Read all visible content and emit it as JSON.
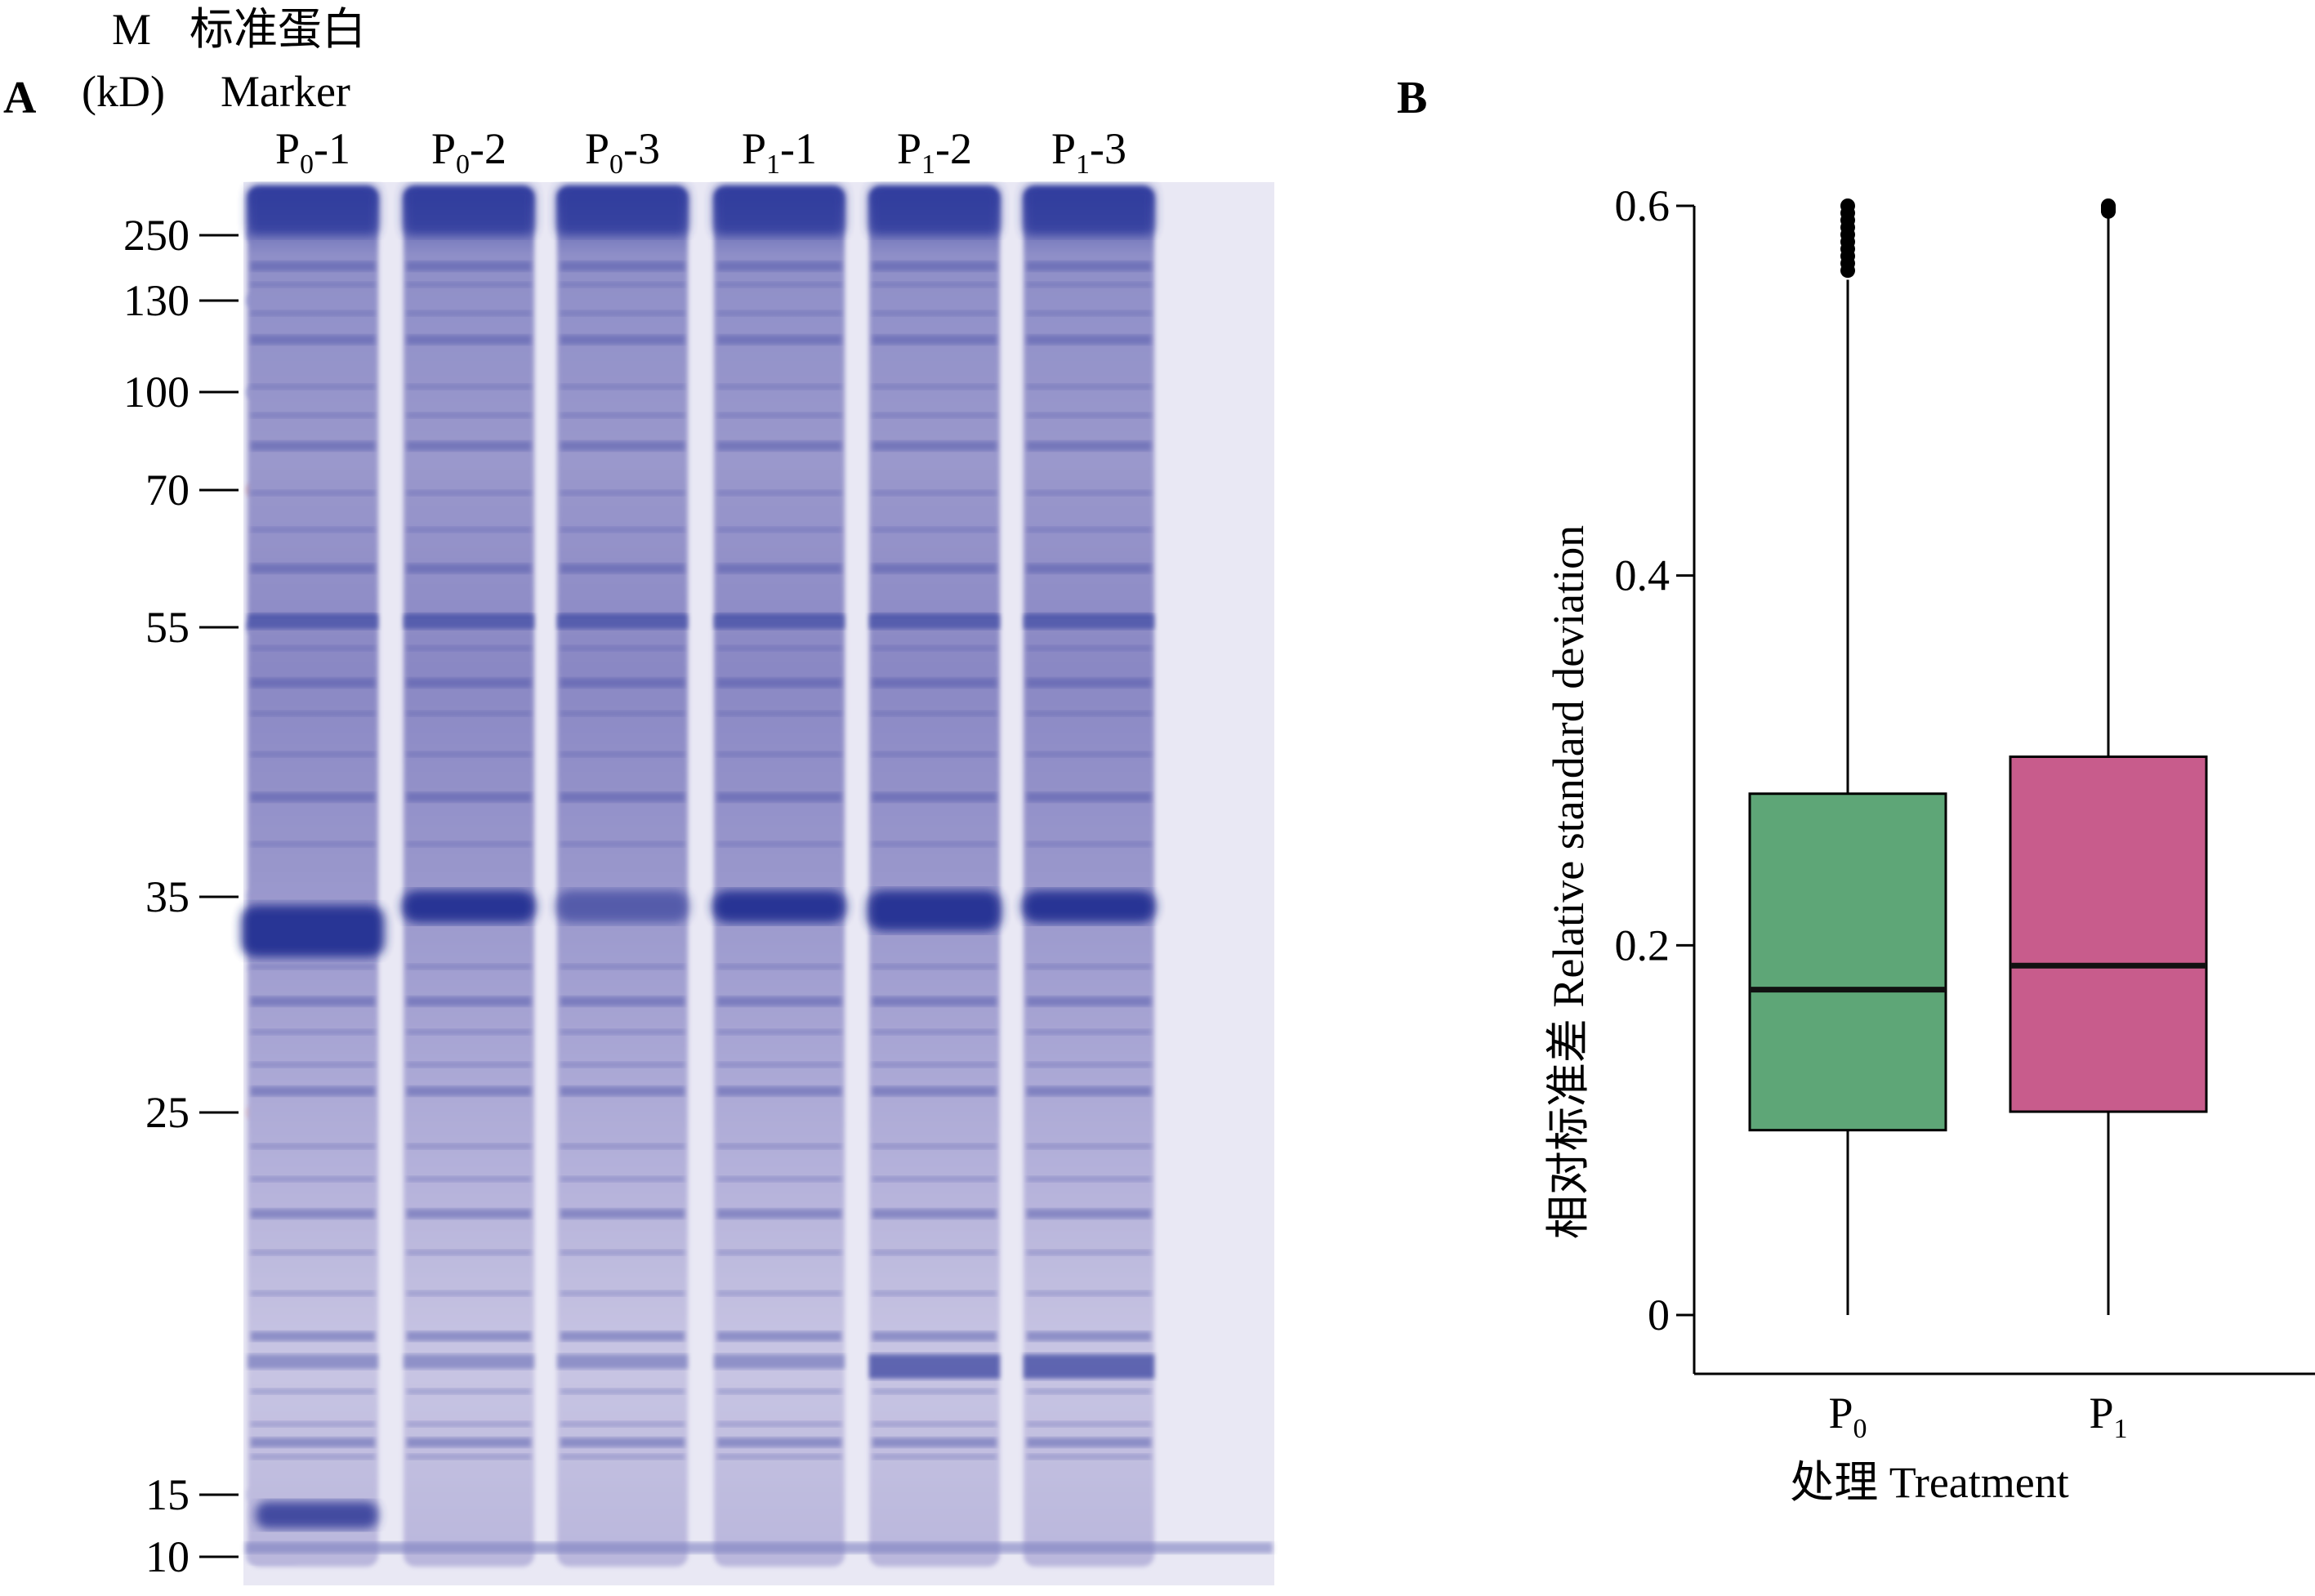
{
  "panel_a": {
    "label": "A",
    "header_m": "M",
    "header_kd": "(kD)",
    "header_std_protein": "标准蛋白",
    "header_marker": "Marker",
    "lanes": [
      {
        "main": "P",
        "sub": "0",
        "suffix": "-1"
      },
      {
        "main": "P",
        "sub": "0",
        "suffix": "-2"
      },
      {
        "main": "P",
        "sub": "0",
        "suffix": "-3"
      },
      {
        "main": "P",
        "sub": "1",
        "suffix": "-1"
      },
      {
        "main": "P",
        "sub": "1",
        "suffix": "-2"
      },
      {
        "main": "P",
        "sub": "1",
        "suffix": "-3"
      }
    ],
    "marker_sizes": [
      "250",
      "130",
      "100",
      "70",
      "55",
      "35",
      "25",
      "15",
      "10"
    ],
    "colors": {
      "gel_background": "#e9e8f4",
      "band_dark": "#2a3596",
      "band_mid": "#6c6fb8",
      "band_light": "#a9a6d3"
    }
  },
  "panel_b": {
    "label": "B",
    "chart_data": {
      "type": "box",
      "categories": [
        "P0",
        "P1"
      ],
      "category_labels": [
        {
          "main": "P",
          "sub": "0"
        },
        {
          "main": "P",
          "sub": "1"
        }
      ],
      "ylabel": "相对标准差 Relative standard deviation",
      "xlabel": "处理 Treatment",
      "ylim": [
        -0.03,
        0.6
      ],
      "yticks": [
        0,
        0.2,
        0.4,
        0.6
      ],
      "ytick_labels": [
        "0",
        "0.2",
        "0.4",
        "0.6"
      ],
      "boxes": [
        {
          "name": "P0",
          "min": 0.0,
          "q1": 0.1,
          "median": 0.176,
          "q3": 0.282,
          "max": 0.56,
          "outlier_range": [
            0.565,
            0.6
          ],
          "color": "#5ea677"
        },
        {
          "name": "P1",
          "min": 0.0,
          "q1": 0.11,
          "median": 0.189,
          "q3": 0.302,
          "max": 0.595,
          "outlier_range": [
            0.597,
            0.6
          ],
          "color": "#c85c8c"
        }
      ],
      "grid": false
    }
  }
}
